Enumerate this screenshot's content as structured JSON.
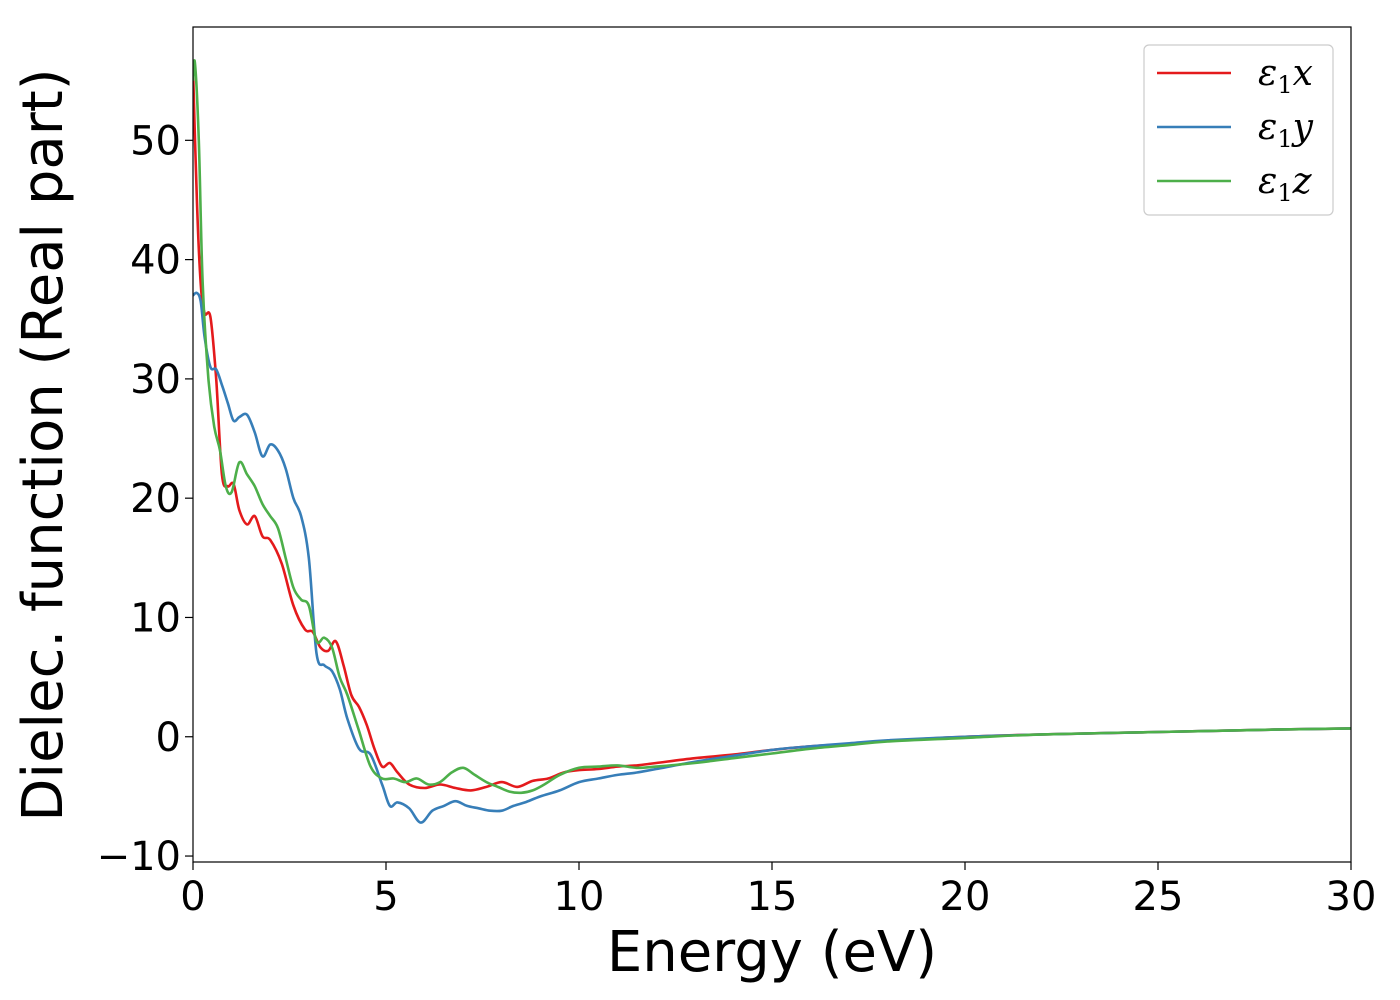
{
  "chart_data": {
    "type": "line",
    "xlabel": "Energy (eV)",
    "ylabel": "Dielec. function (Real part)",
    "xlim": [
      0,
      30
    ],
    "ylim": [
      -10.5,
      59.5
    ],
    "xticks": [
      0,
      5,
      10,
      15,
      20,
      25,
      30
    ],
    "xtick_labels": [
      "0",
      "5",
      "10",
      "15",
      "20",
      "25",
      "30"
    ],
    "yticks": [
      -10,
      0,
      10,
      20,
      30,
      40,
      50
    ],
    "ytick_labels": [
      "−10",
      "0",
      "10",
      "20",
      "30",
      "40",
      "50"
    ],
    "legend_position": "top-right",
    "series": [
      {
        "name": "ε1x",
        "greek": "ε",
        "sub": "1",
        "axis": "x",
        "color": "#e41a1c",
        "x": [
          0,
          0.1,
          0.2,
          0.3,
          0.45,
          0.6,
          0.75,
          0.9,
          1.05,
          1.2,
          1.4,
          1.6,
          1.8,
          2.0,
          2.3,
          2.6,
          2.9,
          3.1,
          3.3,
          3.5,
          3.7,
          3.9,
          4.1,
          4.3,
          4.5,
          4.7,
          4.9,
          5.1,
          5.3,
          5.6,
          6.0,
          6.4,
          6.8,
          7.2,
          7.6,
          8.0,
          8.4,
          8.8,
          9.2,
          9.6,
          10.0,
          10.5,
          11.0,
          11.5,
          12.0,
          13.0,
          14.0,
          15.0,
          16.0,
          17.0,
          18.0,
          20.0,
          22.0,
          25.0,
          28.0,
          30.0
        ],
        "y": [
          56,
          45,
          38,
          35.5,
          35.2,
          30,
          22,
          21,
          21.2,
          19,
          17.8,
          18.5,
          16.8,
          16.5,
          14.5,
          11,
          9,
          8.8,
          7.5,
          7.2,
          8,
          6,
          3.5,
          2.5,
          1,
          -1,
          -2.5,
          -2.2,
          -3,
          -4,
          -4.3,
          -4,
          -4.3,
          -4.5,
          -4.2,
          -3.8,
          -4.2,
          -3.7,
          -3.5,
          -3,
          -2.8,
          -2.7,
          -2.5,
          -2.4,
          -2.2,
          -1.8,
          -1.5,
          -1.1,
          -0.8,
          -0.6,
          -0.35,
          0,
          0.2,
          0.4,
          0.6,
          0.7
        ]
      },
      {
        "name": "ε1y",
        "greek": "ε",
        "sub": "1",
        "axis": "y",
        "color": "#377eb8",
        "x": [
          0,
          0.1,
          0.2,
          0.3,
          0.45,
          0.6,
          0.75,
          0.9,
          1.05,
          1.2,
          1.4,
          1.6,
          1.8,
          2.0,
          2.2,
          2.4,
          2.6,
          2.8,
          3.0,
          3.2,
          3.4,
          3.6,
          3.8,
          4.0,
          4.3,
          4.6,
          4.9,
          5.1,
          5.3,
          5.6,
          5.9,
          6.2,
          6.5,
          6.8,
          7.1,
          7.4,
          7.7,
          8.0,
          8.3,
          8.6,
          9.0,
          9.5,
          10.0,
          10.5,
          11.0,
          11.5,
          12.0,
          13.0,
          14.0,
          15.0,
          16.0,
          17.0,
          18.0,
          20.0,
          22.0,
          25.0,
          28.0,
          30.0
        ],
        "y": [
          37,
          37.2,
          36.5,
          33.5,
          31,
          30.8,
          29.5,
          28,
          26.5,
          26.8,
          27,
          25.5,
          23.5,
          24.5,
          24,
          22.5,
          20,
          18.5,
          15,
          7,
          6,
          5.5,
          4,
          1.5,
          -1,
          -1.5,
          -4,
          -5.8,
          -5.5,
          -6,
          -7.2,
          -6.2,
          -5.8,
          -5.4,
          -5.8,
          -6,
          -6.2,
          -6.2,
          -5.8,
          -5.5,
          -5,
          -4.5,
          -3.8,
          -3.5,
          -3.2,
          -3,
          -2.7,
          -2.1,
          -1.6,
          -1.1,
          -0.8,
          -0.55,
          -0.3,
          0,
          0.2,
          0.4,
          0.6,
          0.7
        ]
      },
      {
        "name": "ε1z",
        "greek": "ε",
        "sub": "1",
        "axis": "z",
        "color": "#4daf4a",
        "x": [
          0,
          0.05,
          0.15,
          0.25,
          0.4,
          0.55,
          0.7,
          0.85,
          1.0,
          1.2,
          1.4,
          1.6,
          1.8,
          2.0,
          2.2,
          2.4,
          2.6,
          2.8,
          3.0,
          3.2,
          3.4,
          3.6,
          3.8,
          4.0,
          4.3,
          4.6,
          4.9,
          5.2,
          5.5,
          5.8,
          6.1,
          6.4,
          6.7,
          7.0,
          7.3,
          7.6,
          7.9,
          8.2,
          8.5,
          8.8,
          9.1,
          9.5,
          10.0,
          10.5,
          11.0,
          11.5,
          12.0,
          13.0,
          14.0,
          15.0,
          16.0,
          17.0,
          18.0,
          20.0,
          22.0,
          25.0,
          28.0,
          30.0
        ],
        "y": [
          55,
          56.5,
          50,
          38,
          30,
          26,
          24,
          21,
          20.5,
          23,
          22,
          21,
          19.5,
          18.5,
          17.5,
          15,
          12.5,
          11.5,
          11,
          8,
          8.3,
          7.5,
          5,
          3.5,
          0.5,
          -2.5,
          -3.5,
          -3.5,
          -3.8,
          -3.5,
          -4,
          -3.8,
          -3,
          -2.6,
          -3.2,
          -3.8,
          -4.2,
          -4.6,
          -4.7,
          -4.5,
          -4,
          -3.2,
          -2.6,
          -2.5,
          -2.4,
          -2.6,
          -2.5,
          -2.2,
          -1.8,
          -1.4,
          -1.0,
          -0.7,
          -0.4,
          -0.1,
          0.2,
          0.4,
          0.6,
          0.7
        ]
      }
    ]
  }
}
